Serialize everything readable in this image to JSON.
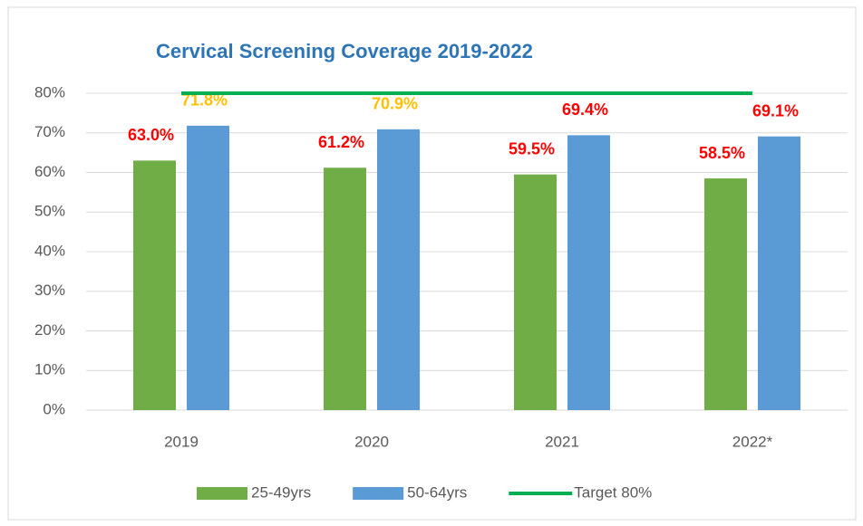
{
  "chart_data": {
    "type": "bar",
    "title": "Cervical Screening Coverage 2019-2022",
    "categories": [
      "2019",
      "2020",
      "2021",
      "2022*"
    ],
    "series": [
      {
        "name": "25-49yrs",
        "color": "#70ad47",
        "values": [
          63.0,
          61.2,
          59.5,
          58.5
        ],
        "value_labels": [
          "63.0%",
          "61.2%",
          "59.5%",
          "58.5%"
        ],
        "label_colors": [
          "#ff0000",
          "#ff0000",
          "#ff0000",
          "#ff0000"
        ]
      },
      {
        "name": "50-64yrs",
        "color": "#5b9bd5",
        "values": [
          71.8,
          70.9,
          69.4,
          69.1
        ],
        "value_labels": [
          "71.8%",
          "70.9%",
          "69.4%",
          "69.1%"
        ],
        "label_colors": [
          "#ffc000",
          "#ffc000",
          "#ff0000",
          "#ff0000"
        ]
      },
      {
        "name": "Target 80%",
        "type": "line",
        "color": "#00b050",
        "values": [
          80,
          80,
          80,
          80
        ]
      }
    ],
    "ylim": [
      0,
      80
    ],
    "yticks": [
      {
        "value": 0,
        "label": "0%"
      },
      {
        "value": 10,
        "label": "10%"
      },
      {
        "value": 20,
        "label": "20%"
      },
      {
        "value": 30,
        "label": "30%"
      },
      {
        "value": 40,
        "label": "40%"
      },
      {
        "value": 50,
        "label": "50%"
      },
      {
        "value": 60,
        "label": "60%"
      },
      {
        "value": 70,
        "label": "70%"
      },
      {
        "value": 80,
        "label": "80%"
      }
    ],
    "grid": true,
    "legend": "bottom"
  }
}
